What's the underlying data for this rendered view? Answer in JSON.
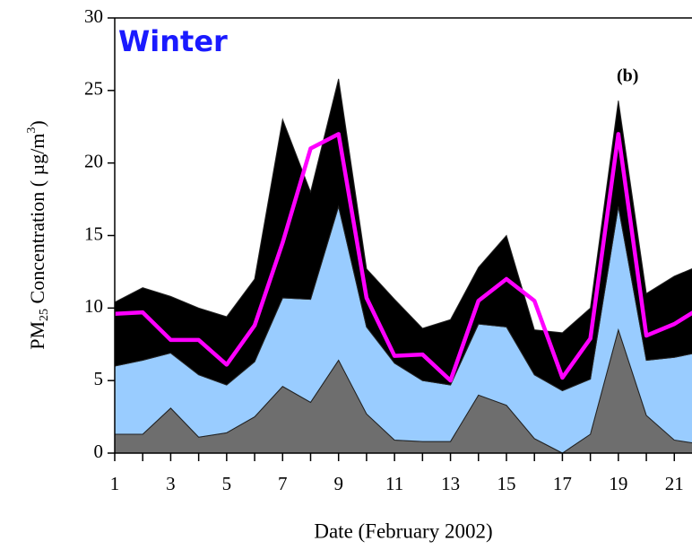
{
  "chart_data": {
    "type": "stacked_area",
    "annotation": "Winter",
    "panel_label": "(b)",
    "x_label": "Date (February 2002)",
    "y_label": [
      "PM",
      "25",
      " Concentration ( µg/m",
      "3",
      ")"
    ],
    "x": [
      1,
      2,
      3,
      4,
      5,
      6,
      7,
      8,
      9,
      10,
      11,
      12,
      13,
      14,
      15,
      16,
      17,
      18,
      19,
      20,
      21,
      22
    ],
    "series": [
      {
        "color": "#6e6e6e",
        "values": [
          1.3,
          1.3,
          3.1,
          1.1,
          1.4,
          2.5,
          4.6,
          3.5,
          6.4,
          2.7,
          0.9,
          0.8,
          0.8,
          4.0,
          3.3,
          1.0,
          0.0,
          1.3,
          8.5,
          2.6,
          0.9,
          0.6
        ]
      },
      {
        "color": "#99ccff",
        "values": [
          4.7,
          5.1,
          3.8,
          4.3,
          3.3,
          3.8,
          6.1,
          7.1,
          10.6,
          6.0,
          5.3,
          4.2,
          3.9,
          4.9,
          5.4,
          4.4,
          4.3,
          3.8,
          8.5,
          3.8,
          5.7,
          6.4
        ]
      },
      {
        "color": "#000000",
        "values": [
          4.4,
          5.0,
          3.9,
          4.6,
          4.7,
          5.7,
          12.3,
          7.4,
          8.8,
          4.0,
          4.4,
          3.6,
          4.5,
          3.9,
          6.3,
          3.1,
          4.0,
          4.9,
          7.3,
          4.6,
          5.6,
          6.0
        ]
      }
    ],
    "line": {
      "color": "#ff00ff",
      "values": [
        9.6,
        9.7,
        7.8,
        7.8,
        6.1,
        8.8,
        14.5,
        21.0,
        22.0,
        10.7,
        6.7,
        6.8,
        5.0,
        10.5,
        12.0,
        10.5,
        5.2,
        7.9,
        22.0,
        8.1,
        8.9,
        10.1
      ]
    },
    "xlim": [
      1,
      21.6
    ],
    "ylim": [
      0,
      30
    ],
    "xticks": [
      1,
      3,
      5,
      7,
      9,
      11,
      13,
      15,
      17,
      19,
      21
    ],
    "xminor_ticks": [
      2,
      4,
      6,
      8,
      10,
      12,
      14,
      16,
      18,
      20
    ],
    "yticks": [
      0,
      5,
      10,
      15,
      20,
      25,
      30
    ]
  }
}
